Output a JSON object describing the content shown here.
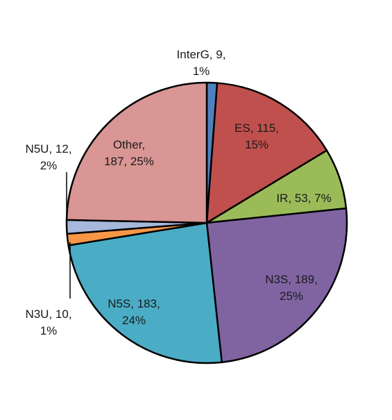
{
  "chart_data": {
    "type": "pie",
    "title": "",
    "start_angle_deg": 0,
    "direction": "clockwise",
    "slices": [
      {
        "label": "InterG",
        "value": 9,
        "percent": "1%",
        "color": "#4f81bd",
        "label_lines": [
          "InterG, 9,",
          "1%"
        ]
      },
      {
        "label": "ES",
        "value": 115,
        "percent": "15%",
        "color": "#c0504d",
        "label_lines": [
          "ES, 115,",
          "15%"
        ]
      },
      {
        "label": "IR",
        "value": 53,
        "percent": "7%",
        "color": "#9bbb59",
        "label_lines": [
          "IR, 53, 7%"
        ]
      },
      {
        "label": "N3S",
        "value": 189,
        "percent": "25%",
        "color": "#8064a2",
        "label_lines": [
          "N3S, 189,",
          "25%"
        ]
      },
      {
        "label": "N5S",
        "value": 183,
        "percent": "24%",
        "color": "#4bacc6",
        "label_lines": [
          "N5S, 183,",
          "24%"
        ]
      },
      {
        "label": "N3U",
        "value": 10,
        "percent": "1%",
        "color": "#f79646",
        "label_lines": [
          "N3U, 10,",
          "1%"
        ]
      },
      {
        "label": "N5U",
        "value": 12,
        "percent": "2%",
        "color": "#a6b8dc",
        "label_lines": [
          "N5U, 12,",
          "2%"
        ]
      },
      {
        "label": "Other",
        "value": 187,
        "percent": "25%",
        "color": "#d99694",
        "label_lines": [
          "Other,",
          "187, 25%"
        ]
      }
    ]
  }
}
